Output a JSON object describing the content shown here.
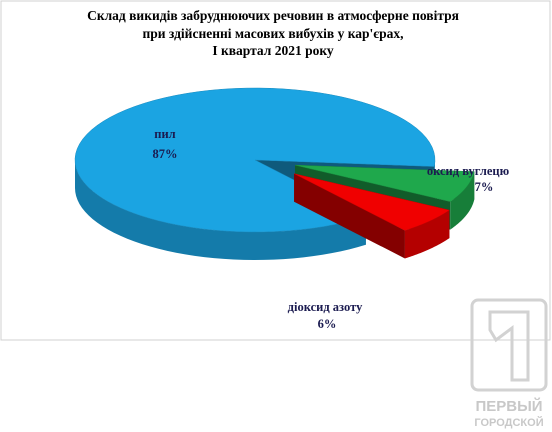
{
  "chart_data": {
    "type": "pie3d",
    "title": [
      "Склад викидів забруднюючих речовин в атмосферне повітря",
      "при здійсненні масових вибухів у кар'єрах,",
      "I квартал 2021 року"
    ],
    "categories": [
      "пил",
      "оксид вуглецю",
      "діоксид азоту"
    ],
    "values": [
      87,
      7,
      6
    ],
    "value_labels": [
      "87%",
      "7%",
      "6%"
    ],
    "colors": [
      "#1ba4e2",
      "#1fa84c",
      "#f00000"
    ]
  },
  "watermark": {
    "line1": "ПЕРВЫЙ",
    "line2": "ГОРОДСКОЙ"
  }
}
